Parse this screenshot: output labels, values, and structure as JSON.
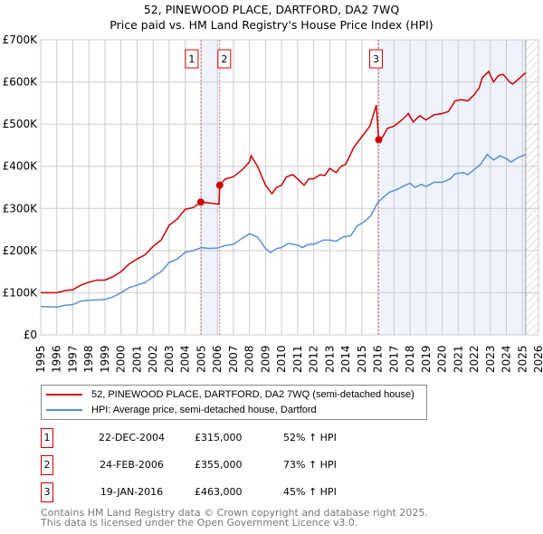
{
  "chart_data": {
    "type": "line",
    "title": "52, PINEWOOD PLACE, DARTFORD, DA2 7WQ",
    "subtitle": "Price paid vs. HM Land Registry's House Price Index (HPI)",
    "xlim": [
      1995,
      2026
    ],
    "ylim": [
      0,
      700000
    ],
    "y_ticks": [
      {
        "v": 0,
        "label": "£0"
      },
      {
        "v": 100000,
        "label": "£100K"
      },
      {
        "v": 200000,
        "label": "£200K"
      },
      {
        "v": 300000,
        "label": "£300K"
      },
      {
        "v": 400000,
        "label": "£400K"
      },
      {
        "v": 500000,
        "label": "£500K"
      },
      {
        "v": 600000,
        "label": "£600K"
      },
      {
        "v": 700000,
        "label": "£700K"
      }
    ],
    "x_ticks": [
      "1995",
      "1996",
      "1997",
      "1998",
      "1999",
      "2000",
      "2001",
      "2002",
      "2003",
      "2004",
      "2005",
      "2006",
      "2007",
      "2008",
      "2009",
      "2010",
      "2011",
      "2012",
      "2013",
      "2014",
      "2015",
      "2016",
      "2017",
      "2018",
      "2019",
      "2020",
      "2021",
      "2022",
      "2023",
      "2024",
      "2025",
      "2026"
    ],
    "grid": true,
    "colors": {
      "property": "#cc0000",
      "hpi": "#5b8fd6",
      "shade": "#eef3fc"
    },
    "series": [
      {
        "name": "52, PINEWOOD PLACE, DARTFORD, DA2 7WQ (semi-detached house)",
        "x": [
          1995,
          1996,
          1996.5,
          1997,
          1997.5,
          1998,
          1998.5,
          1999,
          1999.5,
          2000,
          2000.5,
          2001,
          2001.5,
          2002,
          2002.5,
          2003,
          2003.5,
          2004,
          2004.5,
          2004.97,
          2005.5,
          2006.1,
          2006.15,
          2006.5,
          2007,
          2007.5,
          2008,
          2008.1,
          2008.5,
          2009,
          2009.4,
          2009.7,
          2010,
          2010.3,
          2010.7,
          2011,
          2011.4,
          2011.7,
          2012,
          2012.4,
          2012.7,
          2013,
          2013.4,
          2013.7,
          2014,
          2014.5,
          2015,
          2015.5,
          2015.9,
          2016.05,
          2016.3,
          2016.6,
          2017,
          2017.5,
          2017.9,
          2018.2,
          2018.6,
          2019,
          2019.5,
          2020,
          2020.4,
          2020.8,
          2021.2,
          2021.6,
          2022,
          2022.3,
          2022.5,
          2022.9,
          2023.2,
          2023.5,
          2023.8,
          2024.2,
          2024.4,
          2024.7,
          2025,
          2025.2
        ],
        "y": [
          100,
          100,
          105,
          107,
          118,
          125,
          130,
          130,
          138,
          150,
          168,
          180,
          190,
          210,
          225,
          260,
          275,
          298,
          302,
          315,
          313,
          310,
          355,
          370,
          375,
          390,
          410,
          425,
          400,
          355,
          335,
          350,
          355,
          375,
          380,
          370,
          355,
          370,
          370,
          380,
          378,
          395,
          385,
          400,
          405,
          445,
          470,
          495,
          545,
          463,
          470,
          490,
          495,
          510,
          525,
          505,
          520,
          510,
          522,
          525,
          530,
          555,
          558,
          555,
          570,
          585,
          610,
          625,
          600,
          615,
          618,
          600,
          595,
          605,
          615,
          622
        ],
        "y_unit": "thousand GBP"
      },
      {
        "name": "HPI: Average price, semi-detached house, Dartford",
        "x": [
          1995,
          1996,
          1996.5,
          1997,
          1997.5,
          1998,
          1999,
          1999.5,
          2000,
          2000.5,
          2001,
          2001.5,
          2002,
          2002.5,
          2003,
          2003.5,
          2004,
          2004.5,
          2005,
          2005.5,
          2006,
          2006.5,
          2007,
          2007.5,
          2008,
          2008.5,
          2009,
          2009.3,
          2009.7,
          2010,
          2010.4,
          2011,
          2011.3,
          2011.7,
          2012,
          2012.6,
          2013,
          2013.4,
          2013.8,
          2014.3,
          2014.7,
          2015.2,
          2015.6,
          2016,
          2016.3,
          2016.7,
          2017.2,
          2017.7,
          2018,
          2018.3,
          2018.7,
          2019,
          2019.5,
          2020,
          2020.5,
          2020.8,
          2021.3,
          2021.6,
          2022,
          2022.4,
          2022.8,
          2023.2,
          2023.6,
          2024,
          2024.3,
          2024.7,
          2025.2
        ],
        "y": [
          67,
          66,
          70,
          72,
          80,
          82,
          84,
          90,
          100,
          112,
          118,
          124,
          138,
          150,
          172,
          180,
          196,
          200,
          207,
          205,
          206,
          212,
          215,
          228,
          240,
          232,
          205,
          195,
          205,
          207,
          217,
          213,
          207,
          215,
          215,
          225,
          225,
          222,
          232,
          235,
          258,
          270,
          285,
          315,
          325,
          338,
          345,
          355,
          360,
          350,
          357,
          352,
          362,
          362,
          370,
          382,
          385,
          380,
          392,
          405,
          428,
          415,
          425,
          418,
          410,
          420,
          428
        ],
        "y_unit": "thousand GBP"
      }
    ],
    "sales": [
      {
        "id": "1",
        "x": 2004.97,
        "y": 315,
        "date": "22-DEC-2004",
        "price": "£315,000",
        "hpi": "52% ↑ HPI"
      },
      {
        "id": "2",
        "x": 2006.15,
        "y": 355,
        "date": "24-FEB-2006",
        "price": "£355,000",
        "hpi": "73% ↑ HPI"
      },
      {
        "id": "3",
        "x": 2016.05,
        "y": 463,
        "date": "19-JAN-2016",
        "price": "£463,000",
        "hpi": "45% ↑ HPI"
      }
    ],
    "data_end": 2025.2
  },
  "legend": {
    "property": "52, PINEWOOD PLACE, DARTFORD, DA2 7WQ (semi-detached house)",
    "hpi": "HPI: Average price, semi-detached house, Dartford"
  },
  "footer": {
    "line1": "Contains HM Land Registry data © Crown copyright and database right 2025.",
    "line2": "This data is licensed under the Open Government Licence v3.0."
  }
}
